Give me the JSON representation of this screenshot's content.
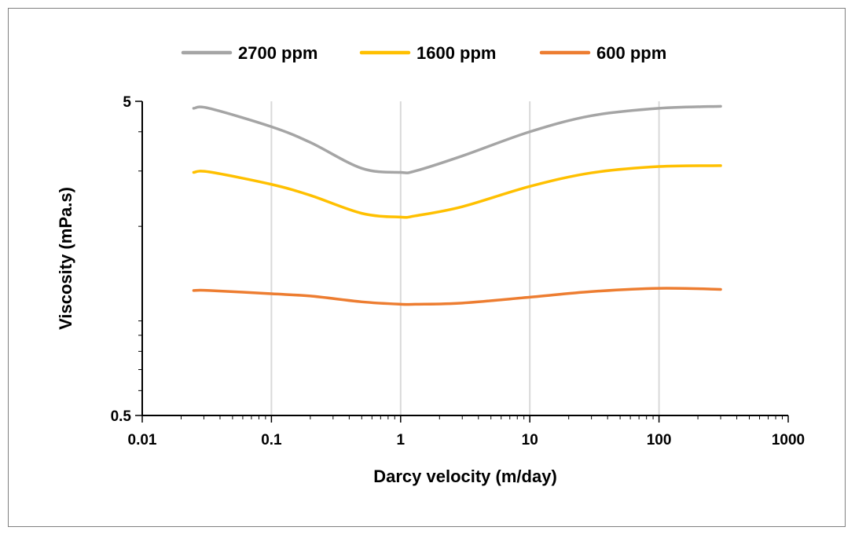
{
  "chart_data": {
    "type": "line",
    "title": "",
    "xlabel": "Darcy velocity (m/day)",
    "ylabel": "Viscosity (mPa.s)",
    "x_scale": "log",
    "y_scale": "log",
    "xlim": [
      0.01,
      1000
    ],
    "ylim": [
      0.5,
      5
    ],
    "x_ticks": [
      "0.01",
      "0.1",
      "1",
      "10",
      "100",
      "1000"
    ],
    "y_ticks": [
      "0.5",
      "5"
    ],
    "grid": "vertical major gridlines",
    "legend_position": "top",
    "series": [
      {
        "name": "2700 ppm",
        "color": "#a5a5a5",
        "x": [
          0.025,
          0.033,
          0.1,
          0.2,
          0.5,
          1,
          1.3,
          3,
          10,
          30,
          100,
          300
        ],
        "y": [
          4.75,
          4.75,
          4.15,
          3.7,
          3.06,
          2.97,
          3.0,
          3.35,
          4.0,
          4.5,
          4.75,
          4.82
        ]
      },
      {
        "name": "1600 ppm",
        "color": "#ffc000",
        "x": [
          0.025,
          0.033,
          0.1,
          0.2,
          0.5,
          1,
          1.3,
          3,
          10,
          30,
          100,
          300
        ],
        "y": [
          2.97,
          2.98,
          2.72,
          2.51,
          2.2,
          2.14,
          2.16,
          2.31,
          2.68,
          2.96,
          3.1,
          3.12
        ]
      },
      {
        "name": "600 ppm",
        "color": "#ed7d31",
        "x": [
          0.025,
          0.033,
          0.1,
          0.2,
          0.5,
          1,
          1.3,
          3,
          10,
          30,
          100,
          300
        ],
        "y": [
          1.25,
          1.25,
          1.22,
          1.2,
          1.15,
          1.13,
          1.13,
          1.14,
          1.19,
          1.24,
          1.27,
          1.26
        ]
      }
    ]
  }
}
